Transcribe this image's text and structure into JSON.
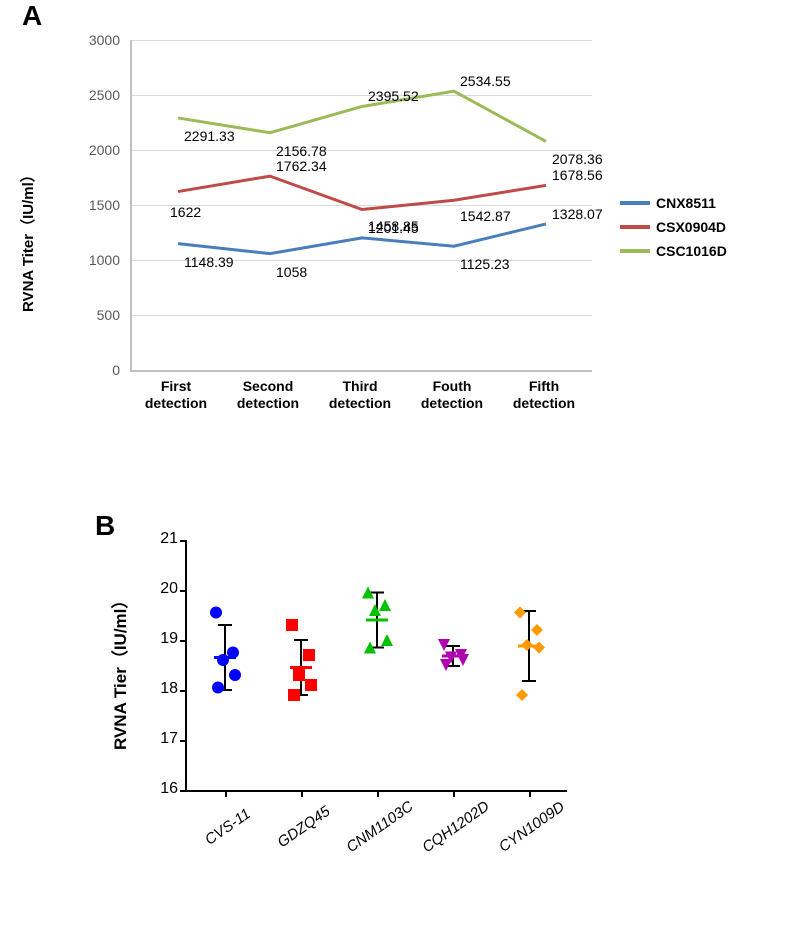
{
  "panelA": {
    "label": "A",
    "type": "line",
    "ytitle": "RVNA Titer（IU/ml）",
    "ylim": [
      0,
      3000
    ],
    "ytick_step": 500,
    "yticks": [
      0,
      500,
      1000,
      1500,
      2000,
      2500,
      3000
    ],
    "categories": [
      "First\ndetection",
      "Second\ndetection",
      "Third\ndetection",
      "Fouth\ndetection",
      "Fifth\ndetection"
    ],
    "grid_color": "#d9d9d9",
    "axis_color": "#bfbfbf",
    "tick_font_color": "#595959",
    "line_width": 3,
    "series": [
      {
        "name": "CNX8511",
        "color": "#4a7ebb",
        "values": [
          1148.39,
          1058,
          1201.45,
          1125.23,
          1328.07
        ]
      },
      {
        "name": "CSX0904D",
        "color": "#be4b48",
        "values": [
          1622,
          1762.34,
          1458.85,
          1542.87,
          1678.56
        ]
      },
      {
        "name": "CSC1016D",
        "color": "#9bbb59",
        "values": [
          2291.33,
          2156.78,
          2395.52,
          2534.55,
          2078.36
        ]
      }
    ],
    "datalabel_fontsize": 14,
    "legend_fontsize": 14
  },
  "panelB": {
    "label": "B",
    "type": "scatter-dot",
    "ytitle": "RVNA Tier（IU/ml）",
    "ylim": [
      16,
      21
    ],
    "ytick_step": 1,
    "yticks": [
      16,
      17,
      18,
      19,
      20,
      21
    ],
    "axis_color": "#000000",
    "error_cap_width": 14,
    "mean_line_width": 22,
    "groups": [
      {
        "name": "CVS-11",
        "color": "#0000ff",
        "marker": "circle",
        "mean": 18.65,
        "err": 0.65,
        "points": [
          19.55,
          18.75,
          18.6,
          18.3,
          18.05
        ]
      },
      {
        "name": "GDZQ45",
        "color": "#ff0000",
        "marker": "square",
        "mean": 18.45,
        "err": 0.55,
        "points": [
          19.3,
          18.7,
          18.3,
          18.1,
          17.9
        ]
      },
      {
        "name": "CNM1103C",
        "color": "#00c000",
        "marker": "triangle-up",
        "mean": 19.4,
        "err": 0.55,
        "points": [
          19.95,
          19.7,
          19.6,
          19.0,
          18.85
        ]
      },
      {
        "name": "CQH1202D",
        "color": "#b000b0",
        "marker": "triangle-down",
        "mean": 18.68,
        "err": 0.2,
        "points": [
          18.9,
          18.7,
          18.65,
          18.6,
          18.5
        ]
      },
      {
        "name": "CYN1009D",
        "color": "#ff9900",
        "marker": "diamond",
        "mean": 18.88,
        "err": 0.7,
        "points": [
          19.55,
          19.2,
          18.9,
          18.85,
          17.9
        ]
      }
    ]
  }
}
